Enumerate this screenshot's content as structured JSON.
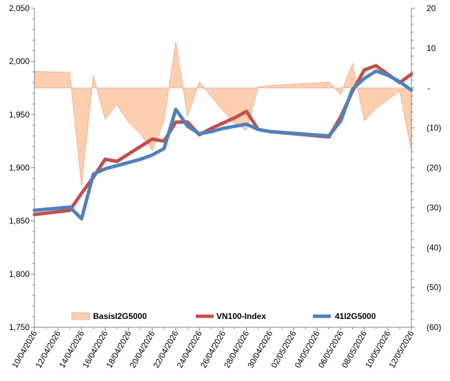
{
  "chart_data": {
    "type": "line",
    "title": "",
    "xlabel": "",
    "ylabel": "",
    "x_tick_labels": [
      "10/04/2026",
      "12/04/2026",
      "14/04/2026",
      "16/04/2026",
      "18/04/2026",
      "20/04/2026",
      "22/04/2026",
      "24/04/2026",
      "26/04/2026",
      "28/04/2026",
      "30/04/2026",
      "02/05/2026",
      "04/05/2026",
      "06/05/2026",
      "08/05/2026",
      "10/05/2026",
      "12/05/2026"
    ],
    "x_range_days": [
      0,
      32
    ],
    "y_left": {
      "ylim": [
        1750,
        2050
      ],
      "ticks": [
        1750,
        1800,
        1850,
        1900,
        1950,
        2000,
        2050
      ],
      "tick_labels": [
        "1,750",
        "1,800",
        "1,850",
        "1,900",
        "1,950",
        "2,000",
        "2,050"
      ]
    },
    "y_right": {
      "ylim": [
        -60,
        20
      ],
      "ticks": [
        20,
        10,
        0,
        -10,
        -20,
        -30,
        -40,
        -50,
        -60
      ],
      "tick_labels": [
        "20",
        "10",
        "-",
        "(10)",
        "(20)",
        "(30)",
        "(40)",
        "(50)",
        "(60)"
      ]
    },
    "legend_position": "bottom-center",
    "series": [
      {
        "name": "BasisI2G5000",
        "kind": "area",
        "axis": "right",
        "color": "#fbcfaf",
        "edge_color": "#e8a990",
        "x": [
          0,
          3,
          4,
          5,
          6,
          7,
          8,
          9,
          10,
          11,
          12,
          13,
          14,
          15,
          16,
          17,
          18,
          19,
          20,
          25,
          26,
          27,
          28,
          29,
          30,
          31,
          32
        ],
        "values": [
          4.2,
          3.9,
          -24.5,
          3.1,
          -7.8,
          -4.2,
          -8.6,
          -11.5,
          -15.6,
          -8.2,
          11.6,
          -7.2,
          1.6,
          -2.1,
          -5.6,
          -8.9,
          -10.6,
          0.3,
          0.6,
          1.5,
          -1.6,
          6.1,
          -8.2,
          -5.1,
          -2.9,
          -0.7,
          -15.8
        ]
      },
      {
        "name": "VN100-Index",
        "kind": "line",
        "axis": "left",
        "color": "#c0504d",
        "x": [
          0,
          3,
          4,
          5,
          6,
          7,
          8,
          9,
          10,
          11,
          12,
          13,
          14,
          15,
          16,
          17,
          18,
          19,
          20,
          25,
          26,
          27,
          28,
          29,
          30,
          31,
          32
        ],
        "values": [
          1856,
          1860,
          1876,
          1891,
          1908,
          1906,
          1913,
          1920,
          1927,
          1925,
          1943,
          1943,
          1931,
          1937,
          1942,
          1947,
          1953,
          1936,
          1934,
          1929,
          1948,
          1972,
          1992,
          1996,
          1988,
          1980,
          1988
        ]
      },
      {
        "name": "41I2G5000",
        "kind": "line",
        "axis": "left",
        "color": "#4f81bd",
        "x": [
          0,
          3,
          4,
          5,
          6,
          7,
          8,
          9,
          10,
          11,
          12,
          13,
          14,
          15,
          16,
          17,
          18,
          19,
          20,
          25,
          26,
          27,
          28,
          29,
          30,
          31,
          32
        ],
        "values": [
          1860,
          1863,
          1852,
          1894,
          1899,
          1902,
          1905,
          1908,
          1912,
          1918,
          1955,
          1939,
          1932,
          1934,
          1937,
          1939,
          1941,
          1936,
          1934,
          1930,
          1944,
          1974,
          1984,
          1991,
          1987,
          1981,
          1973
        ]
      }
    ]
  }
}
